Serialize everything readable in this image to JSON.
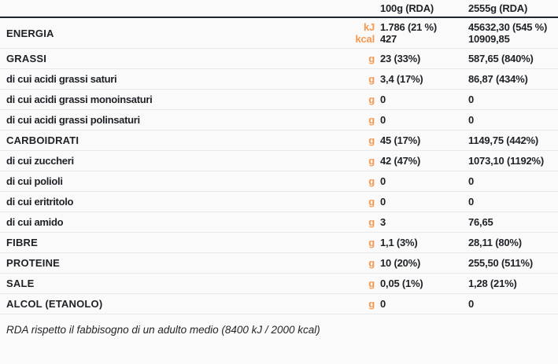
{
  "chart_data": {
    "type": "table",
    "title": "",
    "columns": [
      "100g (RDA)",
      "2555g (RDA)"
    ],
    "energy": {
      "label": "ENERGIA",
      "units": [
        "kJ",
        "kcal"
      ],
      "values_100g": [
        "1.786 (21 %)",
        "427"
      ],
      "values_2555g": [
        "45632,30 (545 %)",
        "10909,85"
      ]
    },
    "rows": [
      {
        "label": "GRASSI",
        "style": "main",
        "unit": "g",
        "value_100g": "23 (33%)",
        "value_2555g": "587,65 (840%)"
      },
      {
        "label": "di cui acidi grassi saturi",
        "style": "sub",
        "unit": "g",
        "value_100g": "3,4 (17%)",
        "value_2555g": "86,87  (434%)"
      },
      {
        "label": "di cui acidi grassi monoinsaturi",
        "style": "sub",
        "unit": "g",
        "value_100g": "0",
        "value_2555g": "0"
      },
      {
        "label": "di cui acidi grassi polinsaturi",
        "style": "sub",
        "unit": "g",
        "value_100g": "0",
        "value_2555g": "0"
      },
      {
        "label": "CARBOIDRATI",
        "style": "main",
        "unit": "g",
        "value_100g": "45 (17%)",
        "value_2555g": "1149,75 (442%)"
      },
      {
        "label": "di cui zuccheri",
        "style": "sub",
        "unit": "g",
        "value_100g": "42 (47%)",
        "value_2555g": "1073,10 (1192%)"
      },
      {
        "label": "di cui polioli",
        "style": "sub",
        "unit": "g",
        "value_100g": "0",
        "value_2555g": "0"
      },
      {
        "label": "di cui eritritolo",
        "style": "sub",
        "unit": "g",
        "value_100g": "0",
        "value_2555g": "0"
      },
      {
        "label": "di cui amido",
        "style": "sub",
        "unit": "g",
        "value_100g": "3",
        "value_2555g": "76,65"
      },
      {
        "label": "FIBRE",
        "style": "main",
        "unit": "g",
        "value_100g": "1,1 (3%)",
        "value_2555g": "28,11 (80%)"
      },
      {
        "label": "PROTEINE",
        "style": "main",
        "unit": "g",
        "value_100g": "10 (20%)",
        "value_2555g": "255,50 (511%)"
      },
      {
        "label": "SALE",
        "style": "main",
        "unit": "g",
        "value_100g": "0,05 (1%)",
        "value_2555g": "1,28 (21%)"
      },
      {
        "label": "ALCOL (ETANOLO)",
        "style": "main",
        "unit": "g",
        "value_100g": "0",
        "value_2555g": "0"
      }
    ],
    "footnote": "RDA rispetto il fabbisogno di un adulto medio (8400 kJ / 2000 kcal)",
    "layout": {
      "grid": "off",
      "unit_column_color_applies_to": "units only"
    }
  },
  "colors": {
    "accent_orange": "#f7974e",
    "header_rule": "#1c2733",
    "text": "#1e2126",
    "row_rule": "#e8e9ea",
    "background": "#fafafa"
  }
}
